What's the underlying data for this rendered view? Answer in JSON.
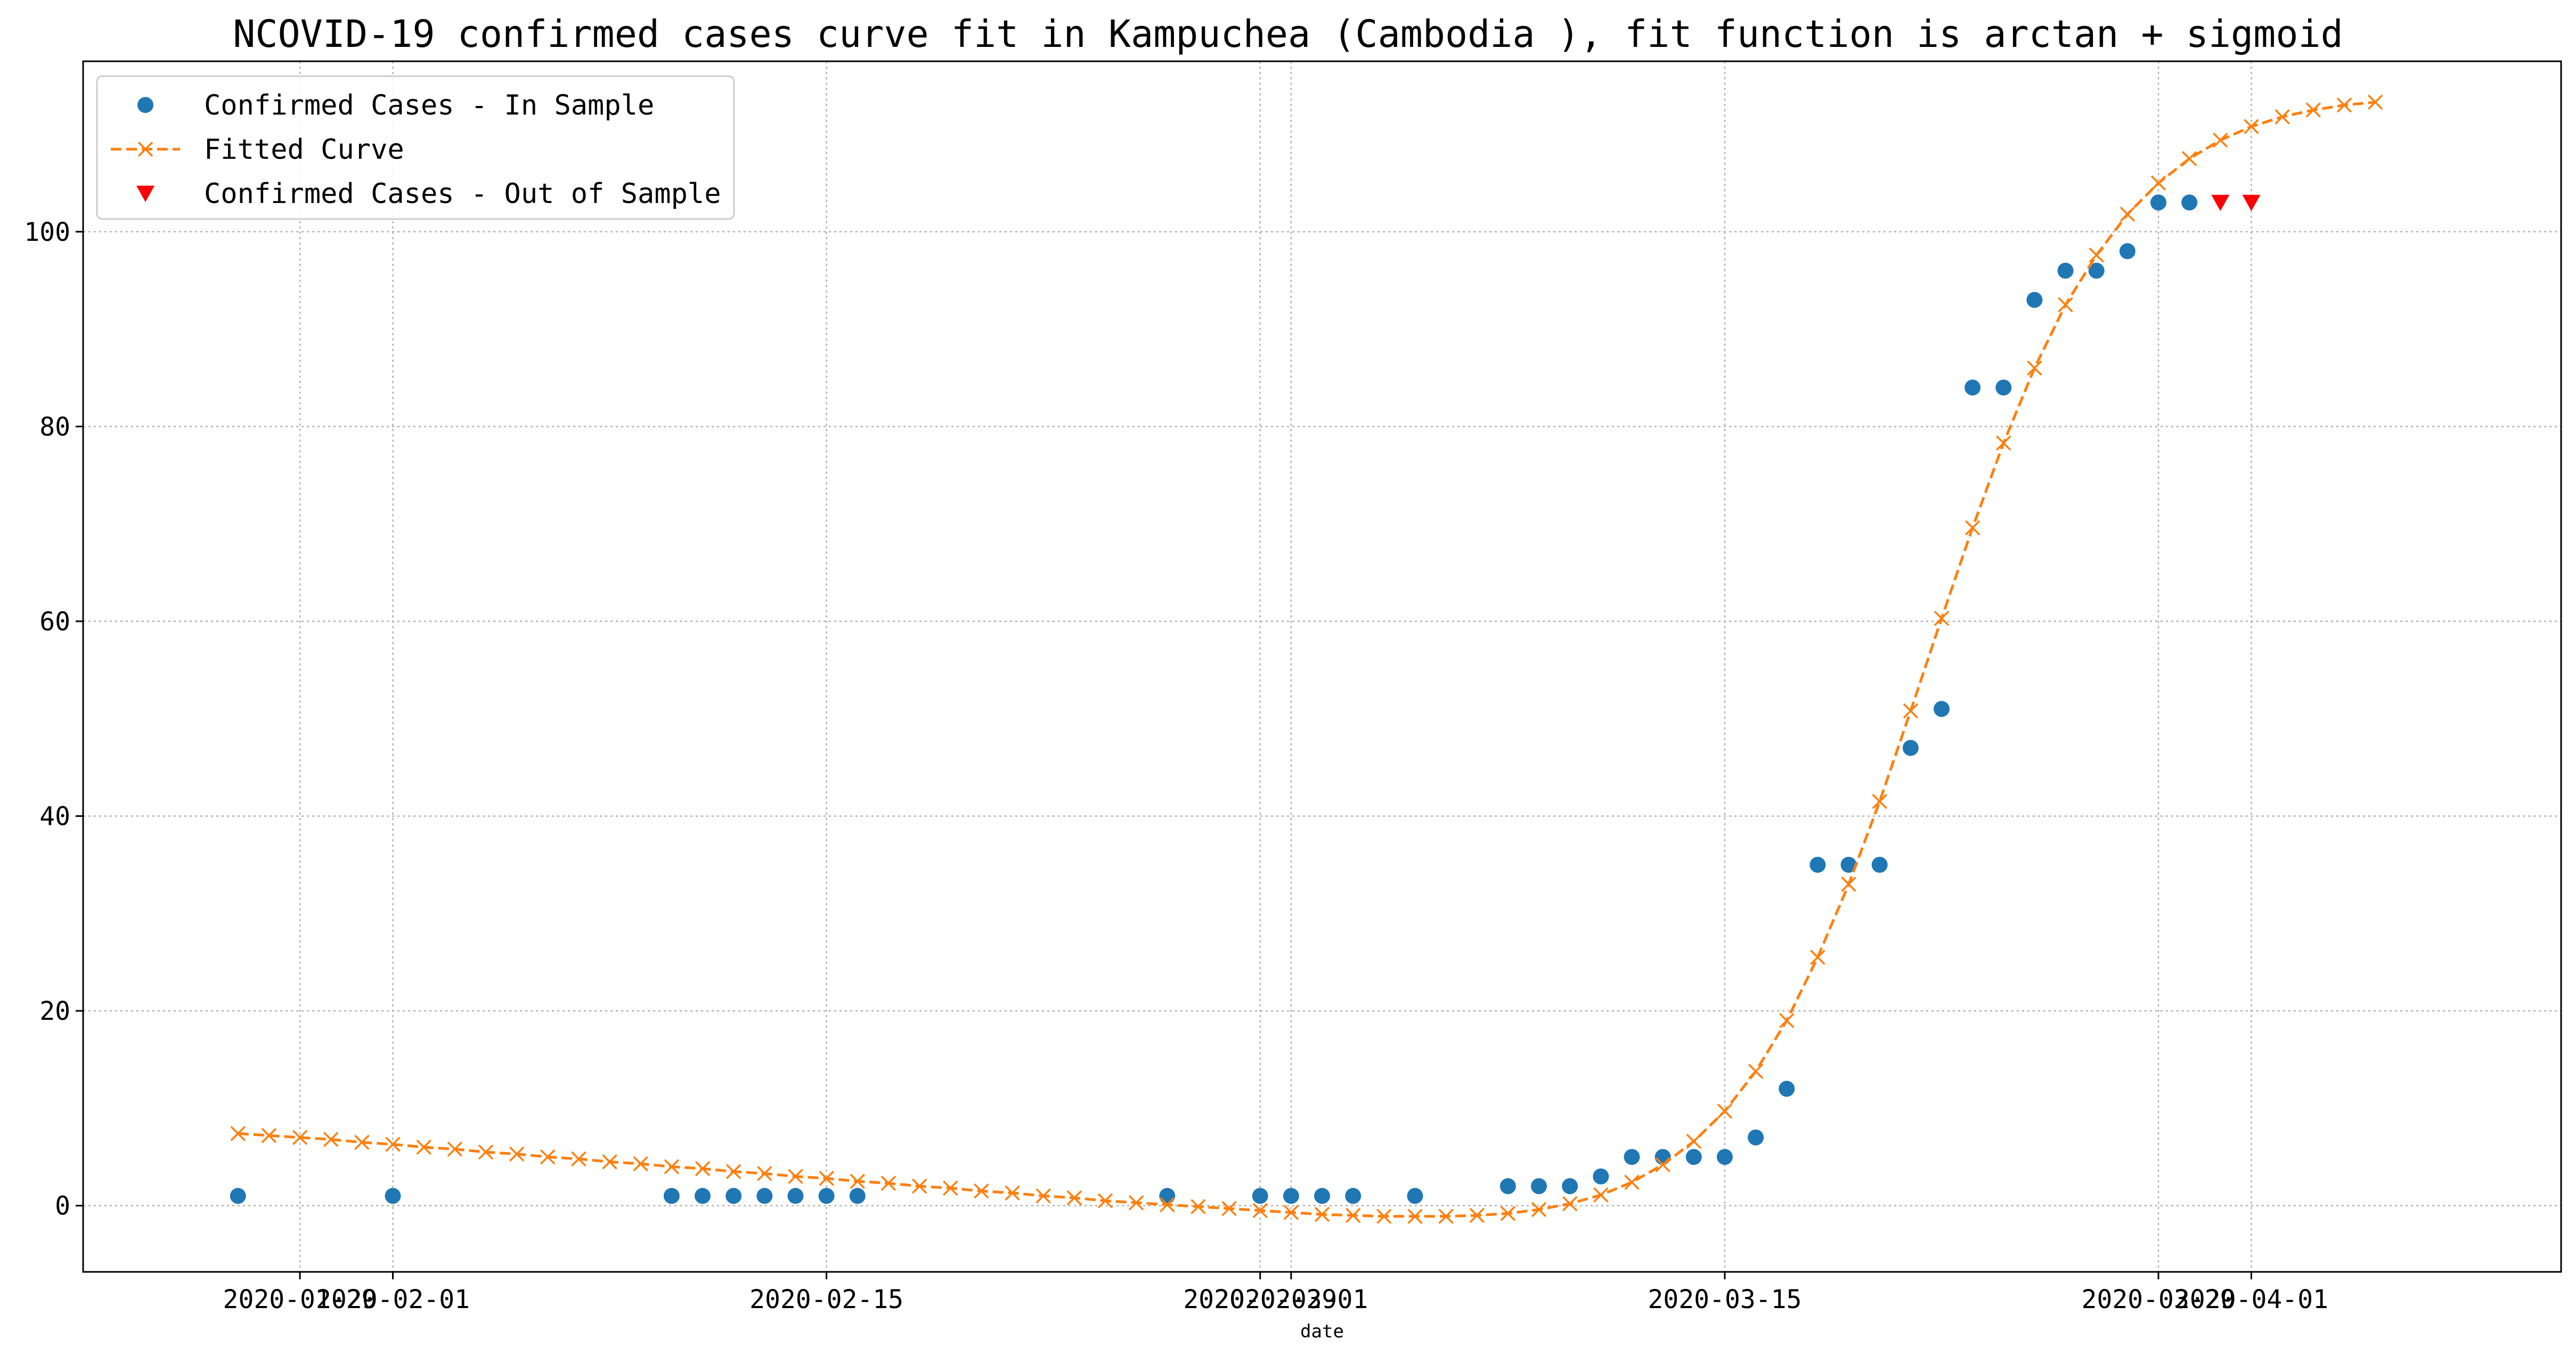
{
  "chart_data": {
    "type": "line",
    "title": "NCOVID-19 confirmed cases curve fit in Kampuchea (Cambodia ), fit function is arctan + sigmoid",
    "xlabel": "date",
    "ylabel": "",
    "ylim": [
      -6.8,
      117.5
    ],
    "xlim": [
      "2020-01-22",
      "2020-04-11"
    ],
    "grid": true,
    "legend_position": "top-left",
    "x_ticks": [
      {
        "date": "2020-01-29",
        "label": "2020-01-29"
      },
      {
        "date": "2020-02-01",
        "label": "2020-02-01"
      },
      {
        "date": "2020-02-15",
        "label": "2020-02-15"
      },
      {
        "date": "2020-02-29",
        "label": "2020-02-29"
      },
      {
        "date": "2020-03-01",
        "label": "2020-03-01"
      },
      {
        "date": "2020-03-15",
        "label": "2020-03-15"
      },
      {
        "date": "2020-03-29",
        "label": "2020-03-29"
      },
      {
        "date": "2020-04-01",
        "label": "2020-04-01"
      }
    ],
    "y_ticks": [
      0,
      20,
      40,
      60,
      80,
      100
    ],
    "series": [
      {
        "name": "Confirmed Cases - In Sample",
        "style": "dots",
        "color": "#1f77b4",
        "points": [
          [
            "2020-01-27",
            1
          ],
          [
            "2020-02-01",
            1
          ],
          [
            "2020-02-10",
            1
          ],
          [
            "2020-02-11",
            1
          ],
          [
            "2020-02-12",
            1
          ],
          [
            "2020-02-13",
            1
          ],
          [
            "2020-02-14",
            1
          ],
          [
            "2020-02-15",
            1
          ],
          [
            "2020-02-16",
            1
          ],
          [
            "2020-02-26",
            1
          ],
          [
            "2020-02-29",
            1
          ],
          [
            "2020-03-01",
            1
          ],
          [
            "2020-03-02",
            1
          ],
          [
            "2020-03-03",
            1
          ],
          [
            "2020-03-05",
            1
          ],
          [
            "2020-03-08",
            2
          ],
          [
            "2020-03-09",
            2
          ],
          [
            "2020-03-10",
            2
          ],
          [
            "2020-03-11",
            3
          ],
          [
            "2020-03-12",
            5
          ],
          [
            "2020-03-13",
            5
          ],
          [
            "2020-03-14",
            5
          ],
          [
            "2020-03-15",
            5
          ],
          [
            "2020-03-16",
            7
          ],
          [
            "2020-03-17",
            12
          ],
          [
            "2020-03-18",
            35
          ],
          [
            "2020-03-19",
            35
          ],
          [
            "2020-03-20",
            35
          ],
          [
            "2020-03-21",
            47
          ],
          [
            "2020-03-22",
            51
          ],
          [
            "2020-03-23",
            84
          ],
          [
            "2020-03-24",
            84
          ],
          [
            "2020-03-25",
            93
          ],
          [
            "2020-03-26",
            96
          ],
          [
            "2020-03-27",
            96
          ],
          [
            "2020-03-28",
            98
          ],
          [
            "2020-03-29",
            103
          ],
          [
            "2020-03-30",
            103
          ]
        ]
      },
      {
        "name": "Fitted Curve",
        "style": "dashed-x",
        "color": "#ff7f0e",
        "points": [
          [
            "2020-01-27",
            7.4
          ],
          [
            "2020-01-28",
            7.2
          ],
          [
            "2020-01-29",
            7.0
          ],
          [
            "2020-01-30",
            6.8
          ],
          [
            "2020-01-31",
            6.5
          ],
          [
            "2020-02-01",
            6.3
          ],
          [
            "2020-02-02",
            6.0
          ],
          [
            "2020-02-03",
            5.8
          ],
          [
            "2020-02-04",
            5.5
          ],
          [
            "2020-02-05",
            5.3
          ],
          [
            "2020-02-06",
            5.0
          ],
          [
            "2020-02-07",
            4.8
          ],
          [
            "2020-02-08",
            4.5
          ],
          [
            "2020-02-09",
            4.3
          ],
          [
            "2020-02-10",
            4.0
          ],
          [
            "2020-02-11",
            3.8
          ],
          [
            "2020-02-12",
            3.5
          ],
          [
            "2020-02-13",
            3.3
          ],
          [
            "2020-02-14",
            3.0
          ],
          [
            "2020-02-15",
            2.8
          ],
          [
            "2020-02-16",
            2.5
          ],
          [
            "2020-02-17",
            2.3
          ],
          [
            "2020-02-18",
            2.0
          ],
          [
            "2020-02-19",
            1.8
          ],
          [
            "2020-02-20",
            1.5
          ],
          [
            "2020-02-21",
            1.3
          ],
          [
            "2020-02-22",
            1.0
          ],
          [
            "2020-02-23",
            0.8
          ],
          [
            "2020-02-24",
            0.5
          ],
          [
            "2020-02-25",
            0.3
          ],
          [
            "2020-02-26",
            0.1
          ],
          [
            "2020-02-27",
            -0.1
          ],
          [
            "2020-02-28",
            -0.3
          ],
          [
            "2020-02-29",
            -0.5
          ],
          [
            "2020-03-01",
            -0.7
          ],
          [
            "2020-03-02",
            -0.9
          ],
          [
            "2020-03-03",
            -1.0
          ],
          [
            "2020-03-04",
            -1.1
          ],
          [
            "2020-03-05",
            -1.1
          ],
          [
            "2020-03-06",
            -1.1
          ],
          [
            "2020-03-07",
            -1.0
          ],
          [
            "2020-03-08",
            -0.8
          ],
          [
            "2020-03-09",
            -0.4
          ],
          [
            "2020-03-10",
            0.2
          ],
          [
            "2020-03-11",
            1.1
          ],
          [
            "2020-03-12",
            2.4
          ],
          [
            "2020-03-13",
            4.2
          ],
          [
            "2020-03-14",
            6.6
          ],
          [
            "2020-03-15",
            9.7
          ],
          [
            "2020-03-16",
            13.8
          ],
          [
            "2020-03-17",
            19.0
          ],
          [
            "2020-03-18",
            25.5
          ],
          [
            "2020-03-19",
            33.0
          ],
          [
            "2020-03-20",
            41.5
          ],
          [
            "2020-03-21",
            50.8
          ],
          [
            "2020-03-22",
            60.3
          ],
          [
            "2020-03-23",
            69.6
          ],
          [
            "2020-03-24",
            78.3
          ],
          [
            "2020-03-25",
            86.0
          ],
          [
            "2020-03-26",
            92.5
          ],
          [
            "2020-03-27",
            97.6
          ],
          [
            "2020-03-28",
            101.8
          ],
          [
            "2020-03-29",
            105.0
          ],
          [
            "2020-03-30",
            107.5
          ],
          [
            "2020-03-31",
            109.4
          ],
          [
            "2020-04-01",
            110.8
          ],
          [
            "2020-04-02",
            111.8
          ],
          [
            "2020-04-03",
            112.5
          ],
          [
            "2020-04-04",
            113.0
          ],
          [
            "2020-04-05",
            113.3
          ]
        ]
      },
      {
        "name": "Confirmed Cases - Out of Sample",
        "style": "triangles-down",
        "color": "#ff0000",
        "points": [
          [
            "2020-03-31",
            103
          ],
          [
            "2020-04-01",
            103
          ]
        ]
      }
    ]
  }
}
